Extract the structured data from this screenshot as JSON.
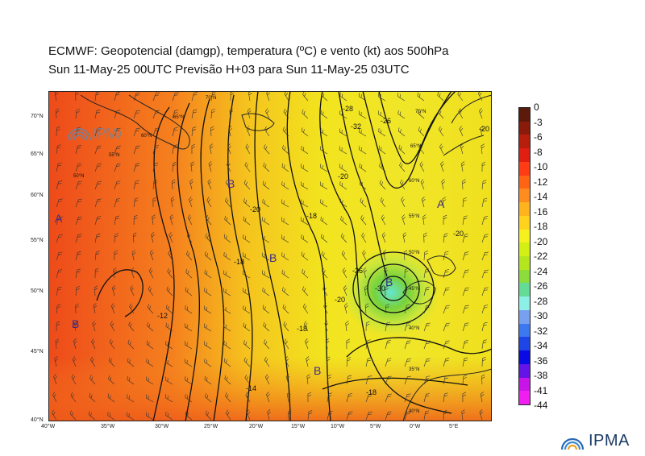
{
  "header": {
    "line1": "ECMWF:  Geopotencial (damgp), temperatura (ºC) e vento (kt) aos 500hPa",
    "line2": "Sun 11-May-25 00UTC Previsão H+03 para Sun 11-May-25 03UTC"
  },
  "map": {
    "lat_labels": [
      "70°N",
      "65°N",
      "60°N",
      "55°N",
      "50°N",
      "45°N",
      "40°N"
    ],
    "lon_labels": [
      "40°W",
      "35°W",
      "30°W",
      "25°W",
      "20°W",
      "15°W",
      "10°W",
      "5°W",
      "0°W",
      "5°E"
    ],
    "inner_lat_labels": [
      "70°N",
      "65°N",
      "60°N",
      "55°N",
      "50°N",
      "45°N",
      "40°N",
      "35°N",
      "30°N",
      "55°N",
      "50°N",
      "45°N",
      "40°N",
      "35°N"
    ],
    "pressure_labels": [
      "A",
      "A",
      "B",
      "B",
      "B",
      "B",
      "B"
    ],
    "contour_labels": [
      "-18",
      "-20",
      "-18",
      "-20",
      "-18",
      "-20",
      "-12",
      "-14",
      "-18",
      "-28",
      "-32",
      "-26",
      "-20",
      "-30",
      "-20",
      "-26"
    ],
    "colors": {
      "warm": "#e8521c",
      "orange": "#f5891e",
      "yellow": "#f5e01e",
      "lime": "#c8e63c",
      "green": "#78d23c",
      "cyan": "#64e6d2",
      "blue": "#3c6ee6",
      "violet": "#6e1ee6"
    }
  },
  "colorbar": {
    "labels": [
      "0",
      "-3",
      "-6",
      "-8",
      "-10",
      "-12",
      "-14",
      "-16",
      "-18",
      "-20",
      "-22",
      "-24",
      "-26",
      "-28",
      "-30",
      "-32",
      "-34",
      "-36",
      "-38",
      "-41",
      "-44"
    ],
    "colors": [
      "#5c1a0a",
      "#8a1a0a",
      "#b81e0e",
      "#e01e12",
      "#ff3c14",
      "#ff6414",
      "#ff8c1e",
      "#ffb41e",
      "#ffd21e",
      "#f5f01e",
      "#d2f014",
      "#b4e61e",
      "#8cdc3c",
      "#64dc96",
      "#8cf0e6",
      "#78a0f0",
      "#3c78f0",
      "#1e46e6",
      "#0a0ae6",
      "#6414e6",
      "#c814e6",
      "#f01ef0"
    ]
  },
  "logo": {
    "text": "IPMA"
  }
}
